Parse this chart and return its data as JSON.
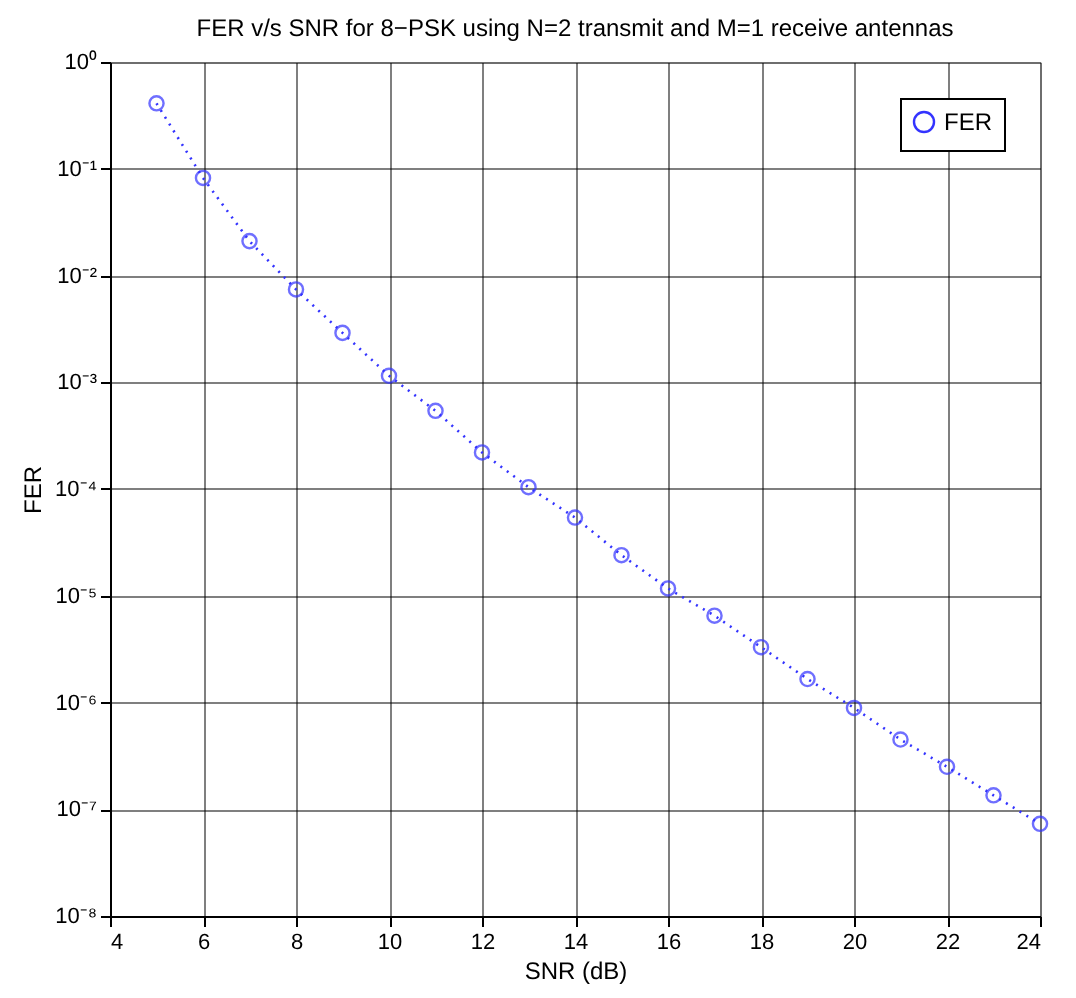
{
  "chart_data": {
    "type": "line",
    "title": "FER v/s SNR for 8−PSK using N=2 transmit and M=1 receive antennas",
    "xlabel": "SNR (dB)",
    "ylabel": "FER",
    "x": [
      5,
      6,
      7,
      8,
      9,
      10,
      11,
      12,
      13,
      14,
      15,
      16,
      17,
      18,
      19,
      20,
      21,
      22,
      23,
      24
    ],
    "series": [
      {
        "name": "FER",
        "color": "#3333ff",
        "values": [
          0.41,
          0.082,
          0.021,
          0.0074,
          0.0029,
          0.00115,
          0.00054,
          0.00022,
          0.000104,
          5.4e-05,
          2.4e-05,
          1.17e-05,
          6.5e-06,
          3.3e-06,
          1.66e-06,
          8.9e-07,
          4.5e-07,
          2.5e-07,
          1.35e-07,
          7.3e-08
        ]
      }
    ],
    "xlim": [
      4,
      24
    ],
    "xticks": [
      4,
      6,
      8,
      10,
      12,
      14,
      16,
      18,
      20,
      22,
      24
    ],
    "ylim": [
      1e-08,
      1
    ],
    "log": "y",
    "yticks": [
      {
        "value": 1,
        "label": "10⁰"
      },
      {
        "value": 0.1,
        "label": "10⁻¹"
      },
      {
        "value": 0.01,
        "label": "10⁻²"
      },
      {
        "value": 0.001,
        "label": "10⁻³"
      },
      {
        "value": 0.0001,
        "label": "10⁻⁴"
      },
      {
        "value": 1e-05,
        "label": "10⁻⁵"
      },
      {
        "value": 1e-06,
        "label": "10⁻⁶"
      },
      {
        "value": 1e-07,
        "label": "10⁻⁷"
      },
      {
        "value": 1e-08,
        "label": "10⁻⁸"
      }
    ],
    "grid": true,
    "legend": "top right",
    "marker": "circle",
    "line_style": "dotted"
  }
}
